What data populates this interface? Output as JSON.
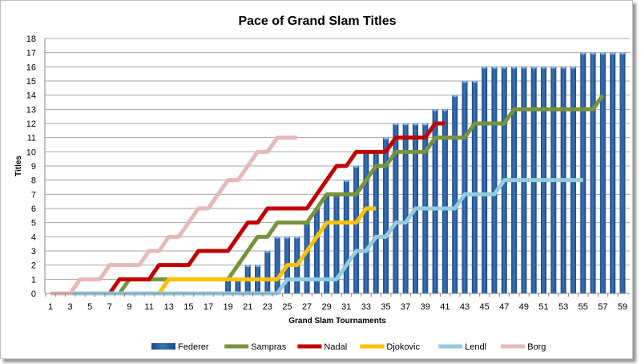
{
  "chart_data": {
    "type": "bar+line",
    "title": "Pace of Grand Slam Titles",
    "xlabel": "Grand Slam Tournaments",
    "ylabel": "Titles",
    "xlim": [
      1,
      59
    ],
    "ylim": [
      0,
      18
    ],
    "yticks": [
      0,
      1,
      2,
      3,
      4,
      5,
      6,
      7,
      8,
      9,
      10,
      11,
      12,
      13,
      14,
      15,
      16,
      17,
      18
    ],
    "xticks": [
      1,
      3,
      5,
      7,
      9,
      11,
      13,
      15,
      17,
      19,
      21,
      23,
      25,
      27,
      29,
      31,
      33,
      35,
      37,
      39,
      41,
      43,
      45,
      47,
      49,
      51,
      53,
      55,
      57,
      59
    ],
    "grid": true,
    "legend": "bottom",
    "series": [
      {
        "name": "Federer",
        "kind": "bar",
        "color": "#2a5e9e",
        "values": [
          0,
          0,
          0,
          0,
          0,
          0,
          0,
          0,
          0,
          0,
          0,
          0,
          0,
          0,
          0,
          0,
          0,
          0,
          1,
          1,
          2,
          2,
          3,
          4,
          4,
          4,
          5,
          6,
          7,
          7,
          8,
          9,
          10,
          10,
          11,
          12,
          12,
          12,
          12,
          13,
          13,
          14,
          15,
          15,
          16,
          16,
          16,
          16,
          16,
          16,
          16,
          16,
          16,
          16,
          17,
          17,
          17,
          17,
          17
        ]
      },
      {
        "name": "Sampras",
        "kind": "line",
        "color": "#77933c",
        "values": [
          null,
          null,
          null,
          null,
          null,
          null,
          null,
          0,
          1,
          1,
          1,
          1,
          1,
          1,
          1,
          1,
          1,
          1,
          1,
          2,
          3,
          4,
          4,
          5,
          5,
          5,
          5,
          6,
          7,
          7,
          7,
          7,
          8,
          9,
          9,
          10,
          10,
          10,
          10,
          11,
          11,
          11,
          11,
          12,
          12,
          12,
          12,
          13,
          13,
          13,
          13,
          13,
          13,
          13,
          13,
          13,
          14
        ]
      },
      {
        "name": "Nadal",
        "kind": "line",
        "color": "#c00000",
        "values": [
          null,
          null,
          null,
          null,
          null,
          null,
          0,
          1,
          1,
          1,
          1,
          2,
          2,
          2,
          2,
          3,
          3,
          3,
          3,
          4,
          5,
          5,
          6,
          6,
          6,
          6,
          6,
          7,
          8,
          9,
          9,
          10,
          10,
          10,
          10,
          11,
          11,
          11,
          11,
          12,
          12
        ]
      },
      {
        "name": "Djokovic",
        "kind": "line",
        "color": "#ffc000",
        "values": [
          null,
          null,
          null,
          null,
          null,
          null,
          null,
          null,
          null,
          null,
          null,
          0,
          1,
          1,
          1,
          1,
          1,
          1,
          1,
          1,
          1,
          1,
          1,
          1,
          2,
          2,
          3,
          4,
          5,
          5,
          5,
          5,
          6,
          6
        ]
      },
      {
        "name": "Lendl",
        "kind": "line",
        "color": "#93cddd",
        "values": [
          null,
          null,
          0,
          0,
          0,
          0,
          0,
          0,
          0,
          0,
          0,
          0,
          0,
          0,
          0,
          0,
          0,
          0,
          0,
          0,
          0,
          0,
          0,
          0,
          1,
          1,
          1,
          1,
          1,
          1,
          2,
          3,
          3,
          4,
          4,
          5,
          5,
          6,
          6,
          6,
          6,
          6,
          7,
          7,
          7,
          7,
          8,
          8,
          8,
          8,
          8,
          8,
          8,
          8,
          8
        ]
      },
      {
        "name": "Borg",
        "kind": "line",
        "color": "#e6b9b8",
        "values": [
          0,
          0,
          0,
          1,
          1,
          1,
          2,
          2,
          2,
          2,
          3,
          3,
          4,
          4,
          5,
          6,
          6,
          7,
          8,
          8,
          9,
          10,
          10,
          11,
          11,
          11
        ]
      }
    ]
  }
}
